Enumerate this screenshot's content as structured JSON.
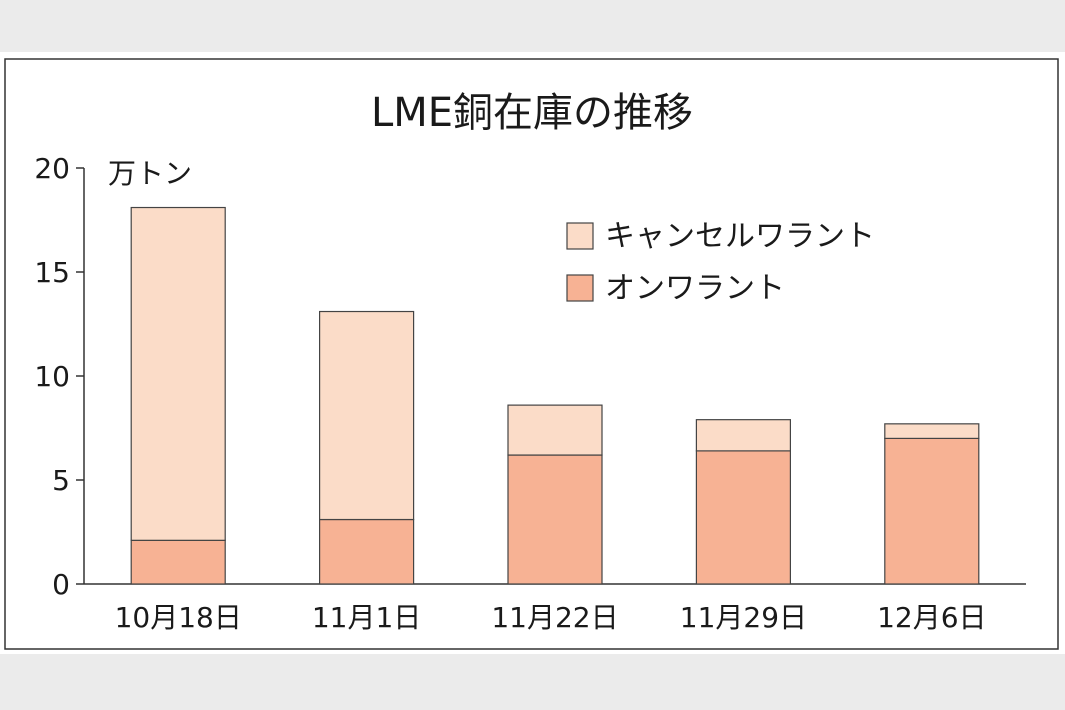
{
  "chart_data": {
    "type": "bar",
    "stacked": true,
    "title": "LME銅在庫の推移",
    "unit_label": "万トン",
    "categories": [
      "10月18日",
      "11月1日",
      "11月22日",
      "11月29日",
      "12月6日"
    ],
    "series": [
      {
        "name": "オンワラント",
        "values": [
          2.1,
          3.1,
          6.2,
          6.4,
          7.0
        ],
        "color": "#f7b294"
      },
      {
        "name": "キャンセルワラント",
        "values": [
          16.0,
          10.0,
          2.4,
          1.5,
          0.7
        ],
        "color": "#fbdcc8"
      }
    ],
    "ylim": [
      0,
      20
    ],
    "yticks": [
      0,
      5,
      10,
      15,
      20
    ],
    "grid": false,
    "legend_position": "top-right",
    "legend_order": [
      "キャンセルワラント",
      "オンワラント"
    ]
  }
}
